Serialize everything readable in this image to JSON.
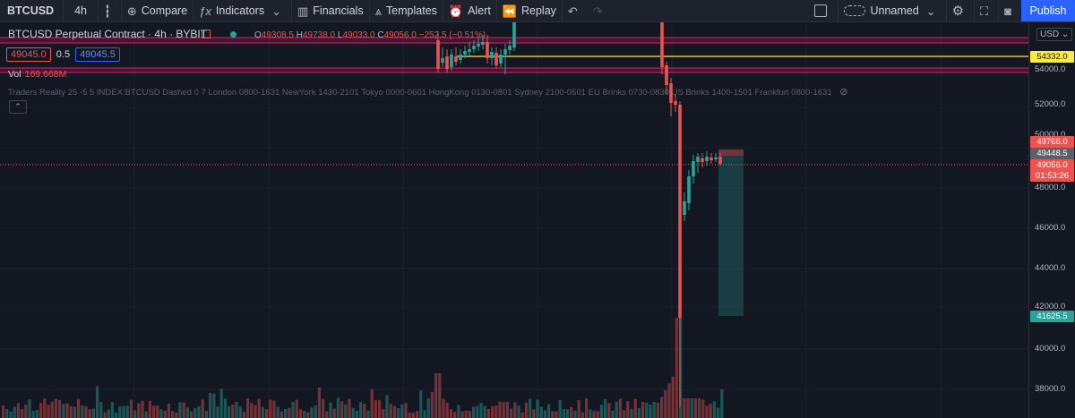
{
  "toolbar": {
    "symbol": "BTCUSD",
    "interval": "4h",
    "compare_label": "Compare",
    "indicators_label": "Indicators",
    "financials_label": "Financials",
    "templates_label": "Templates",
    "alert_label": "Alert",
    "replay_label": "Replay",
    "layout_name": "Unnamed",
    "publish_label": "Publish"
  },
  "legend": {
    "title": "BTCUSD Perpetual Contract · 4h · BYBIT",
    "open_key": "O",
    "open": "49308.5",
    "high_key": "H",
    "high": "49738.0",
    "low_key": "L",
    "low": "49033.0",
    "close_key": "C",
    "close": "49056.0",
    "change": "−252.5 (−0.51%)"
  },
  "bidask": {
    "bid": "49045.0",
    "spread": "0.5",
    "ask": "49045.5"
  },
  "volume": {
    "label": "Vol",
    "value": "169.668M"
  },
  "indicator_line": "Traders Reality 25 -5 5 INDEX:BTCUSD Dashed 0 7 London 0800-1631 NewYork 1430-2101 Tokyo 0000-0601 HongKong 0130-0801 Sydney 2100-0501 EU Brinks 0730-0830 US Brinks 1400-1501 Frankfurt 0800-1631",
  "currency": "USD",
  "price_axis": {
    "ticks": [
      "54000.0",
      "52000.0",
      "50000.0",
      "48000.0",
      "46000.0",
      "44000.0",
      "42000.0",
      "40000.0",
      "38000.0"
    ],
    "yellow_line_label": "54332.0",
    "target_label": "49766.0",
    "mid_label": "49448.5",
    "last_price_label": "49056.0",
    "countdown": "01:53:26",
    "stop_label": "41625.5"
  },
  "colors": {
    "up": "#26a69a",
    "down": "#ef5350",
    "background": "#131722",
    "accent": "#2962ff",
    "level_line": "#ffeb3b",
    "zone": "#c2185b"
  }
}
